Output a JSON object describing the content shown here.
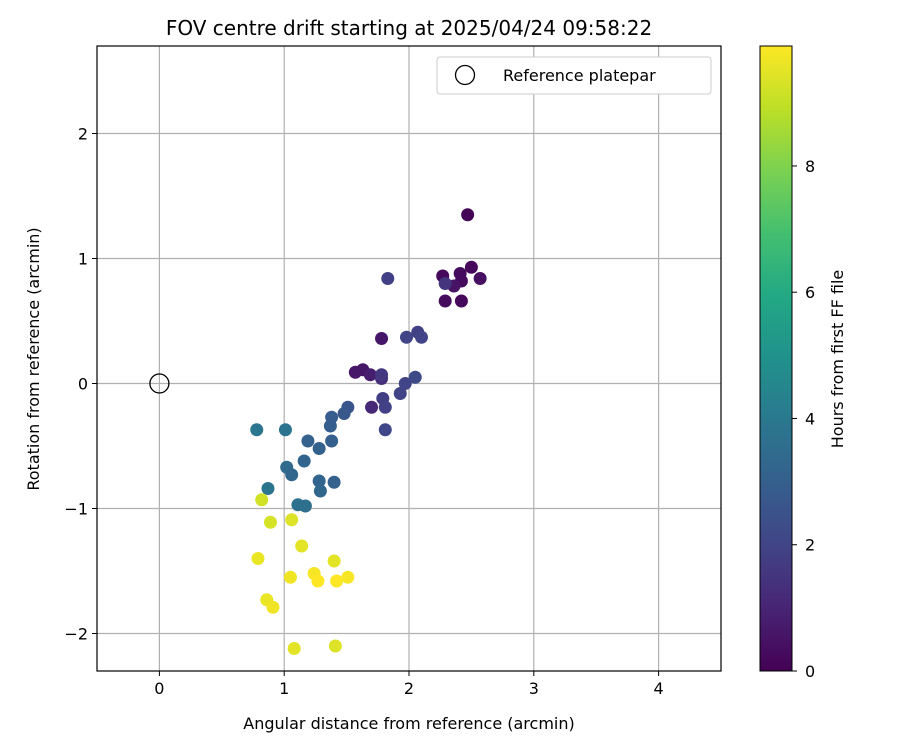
{
  "chart_data": {
    "type": "scatter",
    "title": "FOV centre drift starting at 2025/04/24 09:58:22",
    "xlabel": "Angular distance from reference (arcmin)",
    "ylabel": "Rotation from reference (arcmin)",
    "xlim": [
      -0.5,
      4.5
    ],
    "ylim": [
      -2.3,
      2.7
    ],
    "xticks": [
      0,
      1,
      2,
      3,
      4
    ],
    "xtick_labels": [
      "0",
      "1",
      "2",
      "3",
      "4"
    ],
    "yticks": [
      -2,
      -1,
      0,
      1,
      2
    ],
    "ytick_labels": [
      "−2",
      "−1",
      "0",
      "1",
      "2"
    ],
    "grid": true,
    "legend": {
      "position": "top-right",
      "entries": [
        "Reference platepar"
      ]
    },
    "reference": {
      "name": "Reference platepar",
      "x": 0,
      "y": 0,
      "marker": "open-circle"
    },
    "colorbar": {
      "label": "Hours from first FF file",
      "colormap": "viridis",
      "range": [
        0,
        9.9
      ],
      "ticks": [
        0,
        2,
        4,
        6,
        8
      ],
      "tick_labels": [
        "0",
        "2",
        "4",
        "6",
        "8"
      ]
    },
    "points": [
      {
        "x": 2.47,
        "y": 1.35,
        "t": 0.1
      },
      {
        "x": 2.5,
        "y": 0.93,
        "t": 0.2
      },
      {
        "x": 2.41,
        "y": 0.88,
        "t": 0.3
      },
      {
        "x": 2.27,
        "y": 0.86,
        "t": 0.2
      },
      {
        "x": 2.57,
        "y": 0.84,
        "t": 0.4
      },
      {
        "x": 2.42,
        "y": 0.82,
        "t": 0.3
      },
      {
        "x": 2.36,
        "y": 0.78,
        "t": 0.5
      },
      {
        "x": 2.29,
        "y": 0.66,
        "t": 0.3
      },
      {
        "x": 2.42,
        "y": 0.66,
        "t": 0.2
      },
      {
        "x": 2.29,
        "y": 0.8,
        "t": 1.5
      },
      {
        "x": 1.83,
        "y": 0.84,
        "t": 1.9
      },
      {
        "x": 2.07,
        "y": 0.41,
        "t": 1.9
      },
      {
        "x": 1.98,
        "y": 0.37,
        "t": 2.0
      },
      {
        "x": 2.1,
        "y": 0.37,
        "t": 2.0
      },
      {
        "x": 1.78,
        "y": 0.36,
        "t": 0.6
      },
      {
        "x": 1.57,
        "y": 0.09,
        "t": 0.6
      },
      {
        "x": 1.63,
        "y": 0.11,
        "t": 0.6
      },
      {
        "x": 1.69,
        "y": 0.07,
        "t": 0.8
      },
      {
        "x": 1.78,
        "y": 0.04,
        "t": 1.3
      },
      {
        "x": 1.78,
        "y": 0.07,
        "t": 1.6
      },
      {
        "x": 2.05,
        "y": 0.05,
        "t": 2.2
      },
      {
        "x": 1.97,
        "y": 0.0,
        "t": 2.0
      },
      {
        "x": 1.93,
        "y": -0.08,
        "t": 2.0
      },
      {
        "x": 1.79,
        "y": -0.12,
        "t": 1.8
      },
      {
        "x": 1.7,
        "y": -0.19,
        "t": 1.1
      },
      {
        "x": 1.81,
        "y": -0.19,
        "t": 1.9
      },
      {
        "x": 1.51,
        "y": -0.19,
        "t": 2.6
      },
      {
        "x": 1.48,
        "y": -0.24,
        "t": 2.7
      },
      {
        "x": 1.38,
        "y": -0.27,
        "t": 2.9
      },
      {
        "x": 1.37,
        "y": -0.34,
        "t": 3.0
      },
      {
        "x": 1.81,
        "y": -0.37,
        "t": 2.1
      },
      {
        "x": 1.38,
        "y": -0.46,
        "t": 3.0
      },
      {
        "x": 1.19,
        "y": -0.46,
        "t": 3.1
      },
      {
        "x": 1.28,
        "y": -0.52,
        "t": 3.1
      },
      {
        "x": 1.16,
        "y": -0.62,
        "t": 3.2
      },
      {
        "x": 0.78,
        "y": -0.37,
        "t": 3.9
      },
      {
        "x": 1.01,
        "y": -0.37,
        "t": 3.8
      },
      {
        "x": 1.02,
        "y": -0.67,
        "t": 3.4
      },
      {
        "x": 1.06,
        "y": -0.73,
        "t": 3.3
      },
      {
        "x": 1.28,
        "y": -0.78,
        "t": 3.2
      },
      {
        "x": 1.4,
        "y": -0.79,
        "t": 3.1
      },
      {
        "x": 0.87,
        "y": -0.84,
        "t": 3.8
      },
      {
        "x": 1.29,
        "y": -0.86,
        "t": 3.3
      },
      {
        "x": 1.11,
        "y": -0.97,
        "t": 3.7
      },
      {
        "x": 1.17,
        "y": -0.98,
        "t": 3.6
      },
      {
        "x": 0.82,
        "y": -0.93,
        "t": 9.2
      },
      {
        "x": 0.89,
        "y": -1.11,
        "t": 9.3
      },
      {
        "x": 1.06,
        "y": -1.09,
        "t": 9.4
      },
      {
        "x": 1.14,
        "y": -1.3,
        "t": 9.5
      },
      {
        "x": 0.79,
        "y": -1.4,
        "t": 9.6
      },
      {
        "x": 1.4,
        "y": -1.42,
        "t": 9.5
      },
      {
        "x": 1.05,
        "y": -1.55,
        "t": 9.7
      },
      {
        "x": 1.24,
        "y": -1.52,
        "t": 9.8
      },
      {
        "x": 1.27,
        "y": -1.58,
        "t": 9.9
      },
      {
        "x": 1.42,
        "y": -1.58,
        "t": 9.9
      },
      {
        "x": 1.51,
        "y": -1.55,
        "t": 9.8
      },
      {
        "x": 0.86,
        "y": -1.73,
        "t": 9.6
      },
      {
        "x": 0.91,
        "y": -1.79,
        "t": 9.7
      },
      {
        "x": 1.08,
        "y": -2.12,
        "t": 9.5
      },
      {
        "x": 1.41,
        "y": -2.1,
        "t": 9.4
      }
    ]
  }
}
